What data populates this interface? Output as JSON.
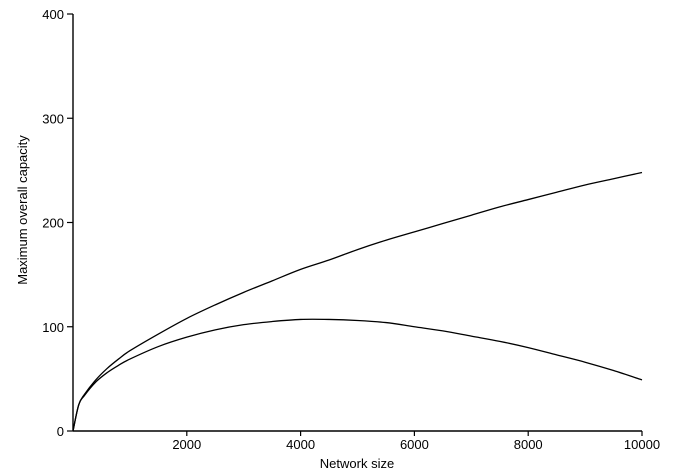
{
  "chart_data": {
    "type": "line",
    "title": "",
    "xlabel": "Network size",
    "ylabel": "Maximum overall capacity",
    "xlim": [
      0,
      10000
    ],
    "ylim": [
      0,
      400
    ],
    "xticks": [
      2000,
      4000,
      6000,
      8000,
      10000
    ],
    "yticks": [
      0,
      100,
      200,
      300,
      400
    ],
    "grid": false,
    "series": [
      {
        "x": [
          0,
          100,
          200,
          400,
          600,
          800,
          1000,
          1500,
          2000,
          2500,
          3000,
          3500,
          4000,
          4500,
          5000,
          5500,
          6000,
          6500,
          7000,
          7500,
          8000,
          8500,
          9000,
          9500,
          10000
        ],
        "values": [
          0,
          25,
          35,
          49,
          60,
          69,
          77,
          93,
          108,
          121,
          133,
          144,
          155,
          164,
          174,
          183,
          191,
          199,
          207,
          215,
          222,
          229,
          236,
          242,
          248
        ]
      },
      {
        "x": [
          0,
          100,
          200,
          400,
          600,
          800,
          1000,
          1500,
          2000,
          2500,
          3000,
          3500,
          4000,
          4500,
          5000,
          5500,
          6000,
          6500,
          7000,
          7500,
          8000,
          8500,
          9000,
          9500,
          10000
        ],
        "values": [
          0,
          25,
          34,
          47,
          56,
          63,
          69,
          81,
          90,
          97,
          102,
          105,
          107,
          107,
          106,
          104,
          100,
          96,
          91,
          86,
          80,
          73,
          66,
          58,
          49
        ]
      }
    ]
  }
}
